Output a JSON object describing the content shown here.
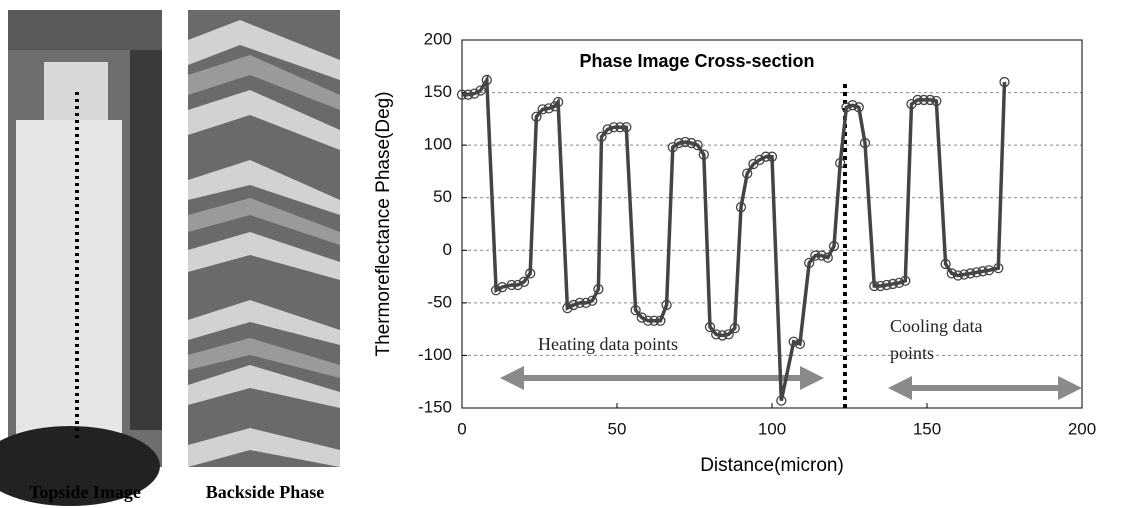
{
  "panels": [
    {
      "caption": "Topside Image"
    },
    {
      "caption": "Backside Phase"
    }
  ],
  "chart_data": {
    "type": "line",
    "title": "Phase Image Cross-section",
    "x_label": "Distance(micron)",
    "y_label": "Thermoreflectance Phase(Deg)",
    "x": [
      0,
      2,
      4,
      6,
      8,
      11,
      13,
      16,
      18,
      20,
      22,
      24,
      26,
      28,
      30,
      31,
      34,
      36,
      38,
      40,
      42,
      44,
      45,
      47,
      49,
      51,
      53,
      56,
      58,
      60,
      62,
      64,
      66,
      68,
      70,
      72,
      74,
      76,
      78,
      80,
      82,
      84,
      86,
      88,
      90,
      92,
      94,
      96,
      98,
      100,
      103,
      107,
      109,
      112,
      114,
      116,
      118,
      120,
      122,
      124,
      126,
      128,
      130,
      133,
      135,
      137,
      139,
      141,
      143,
      145,
      147,
      149,
      151,
      153,
      156,
      158,
      160,
      162,
      164,
      166,
      168,
      170,
      173,
      175
    ],
    "values": [
      148,
      148,
      149,
      152,
      162,
      -38,
      -35,
      -33,
      -33,
      -30,
      -22,
      127,
      134,
      135,
      137,
      141,
      -55,
      -52,
      -50,
      -50,
      -48,
      -37,
      108,
      115,
      117,
      117,
      117,
      -57,
      -64,
      -67,
      -67,
      -67,
      -52,
      98,
      102,
      103,
      102,
      100,
      91,
      -73,
      -80,
      -81,
      -80,
      -74,
      41,
      73,
      82,
      86,
      89,
      89,
      -143,
      -87,
      -89,
      -12,
      -5,
      -5,
      -7,
      4,
      83,
      136,
      138,
      136,
      102,
      -34,
      -34,
      -33,
      -32,
      -31,
      -29,
      139,
      143,
      143,
      143,
      142,
      -13,
      -22,
      -24,
      -23,
      -22,
      -21,
      -20,
      -19,
      -17,
      160
    ],
    "color": "#444444",
    "xlim": [
      0,
      200
    ],
    "ylim": [
      -150,
      200
    ],
    "xticks": [
      0,
      50,
      100,
      150,
      200
    ],
    "yticks": [
      -150,
      -100,
      -50,
      0,
      50,
      100,
      150,
      200
    ],
    "grid": true,
    "annotations": [
      "Heating data points",
      "Cooling data",
      "points"
    ]
  }
}
